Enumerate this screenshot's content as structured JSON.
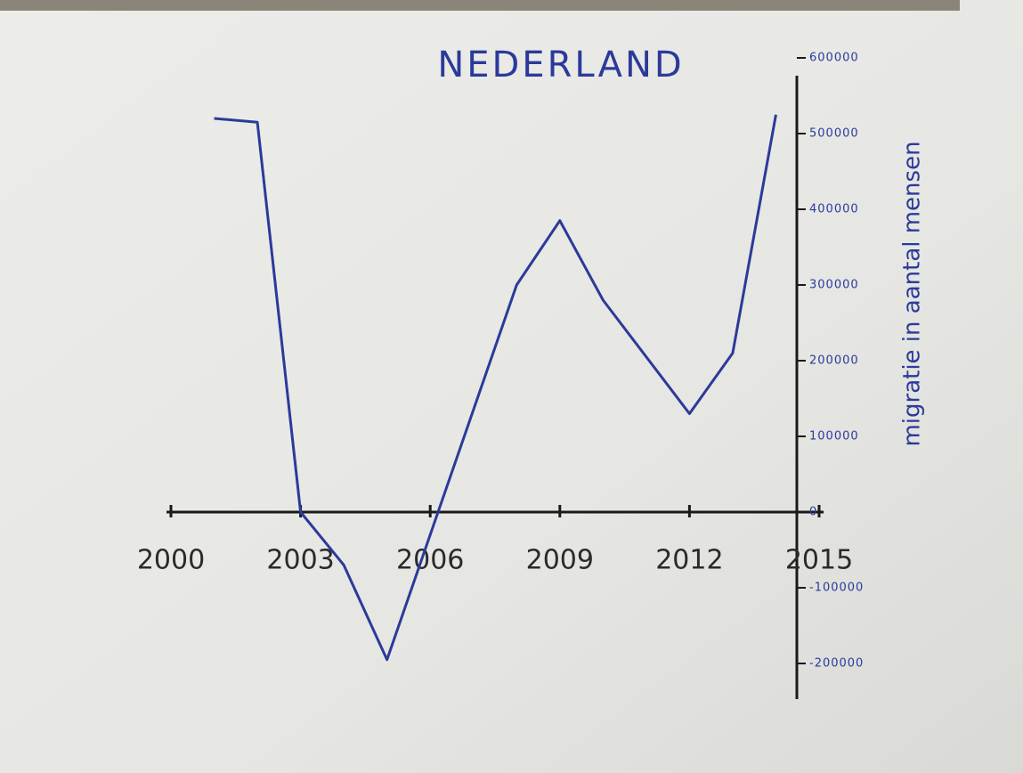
{
  "chart_data": {
    "type": "line",
    "title": "NEDERLAND",
    "y_label": "migratie in aantal mensen",
    "x": [
      2001,
      2002,
      2003,
      2004,
      2005,
      2008,
      2009,
      2010,
      2012,
      2013,
      2014
    ],
    "series": [
      {
        "color": "#2b3a9a",
        "values": [
          520000,
          515000,
          0,
          -70000,
          -195000,
          300000,
          385000,
          280000,
          130000,
          210000,
          525000
        ]
      }
    ],
    "xlim": [
      2000,
      2015
    ],
    "xticks": [
      2000,
      2003,
      2006,
      2009,
      2012,
      2015
    ],
    "ylim": [
      -200000,
      600000
    ],
    "yticks": [
      -200000,
      -100000,
      0,
      100000,
      200000,
      300000,
      400000,
      500000,
      600000
    ]
  }
}
